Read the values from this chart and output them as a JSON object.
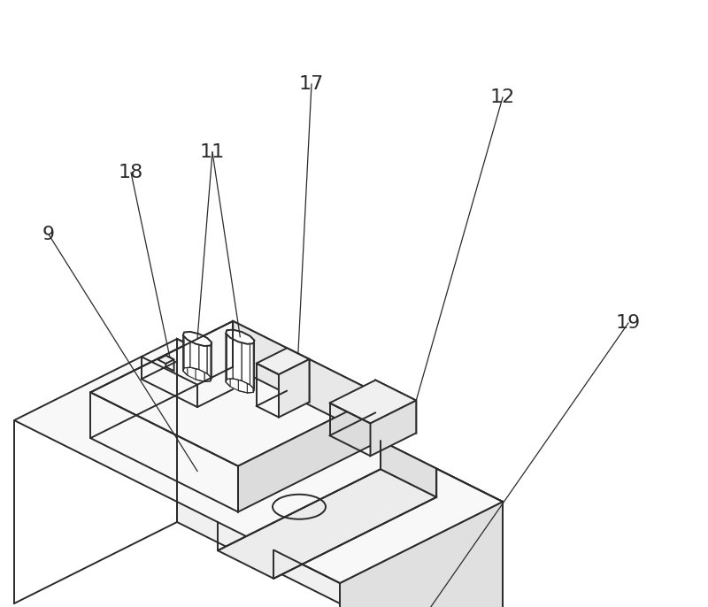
{
  "bg_color": "#ffffff",
  "line_color": "#2a2a2a",
  "line_width": 1.4,
  "figsize": [
    8.0,
    6.86
  ],
  "dpi": 100
}
